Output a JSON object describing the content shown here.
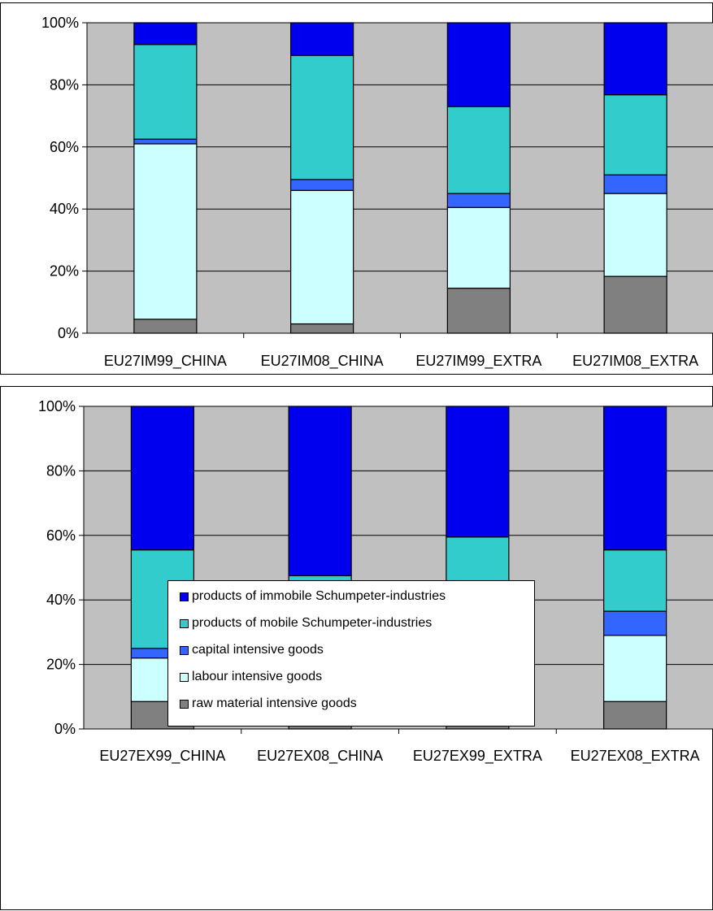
{
  "chart_data": [
    {
      "type": "bar",
      "stacked": true,
      "normalized": true,
      "categories": [
        "EU27IM99_CHINA",
        "EU27IM08_CHINA",
        "EU27IM99_EXTRA",
        "EU27IM08_EXTRA"
      ],
      "yticks": [
        "0%",
        "20%",
        "40%",
        "60%",
        "80%",
        "100%"
      ],
      "ylim": [
        0,
        100
      ],
      "grid": true,
      "series": [
        {
          "name": "raw material intensive goods",
          "color": "#808080",
          "values": [
            4.5,
            3,
            14.5,
            18.3
          ]
        },
        {
          "name": "labour intensive goods",
          "color": "#ccffff",
          "values": [
            56.5,
            43,
            26,
            26.7
          ]
        },
        {
          "name": "capital intensive goods",
          "color": "#3366ff",
          "values": [
            1.5,
            3.5,
            4.5,
            6
          ]
        },
        {
          "name": "products of mobile Schumpeter-industries",
          "color": "#33cccc",
          "values": [
            30.5,
            40,
            28,
            25.8
          ]
        },
        {
          "name": "products of immobile Schumpeter-industries",
          "color": "#0000ee",
          "values": [
            7,
            10.5,
            27,
            23.2
          ]
        }
      ]
    },
    {
      "type": "bar",
      "stacked": true,
      "normalized": true,
      "categories": [
        "EU27EX99_CHINA",
        "EU27EX08_CHINA",
        "EU27EX99_EXTRA",
        "EU27EX08_EXTRA"
      ],
      "yticks": [
        "0%",
        "20%",
        "40%",
        "60%",
        "80%",
        "100%"
      ],
      "ylim": [
        0,
        100
      ],
      "grid": true,
      "legend_position": "bottom",
      "series": [
        {
          "name": "raw material intensive goods",
          "color": "#808080",
          "values": [
            8.5,
            10.5,
            8,
            8.5
          ]
        },
        {
          "name": "labour intensive goods",
          "color": "#ccffff",
          "values": [
            13.5,
            12.5,
            23,
            20.5
          ]
        },
        {
          "name": "capital intensive goods",
          "color": "#3366ff",
          "values": [
            3,
            5,
            7,
            7.5
          ]
        },
        {
          "name": "products of mobile Schumpeter-industries",
          "color": "#33cccc",
          "values": [
            30.5,
            19.5,
            21.5,
            19
          ]
        },
        {
          "name": "products of immobile Schumpeter-industries",
          "color": "#0000ee",
          "values": [
            44.5,
            52.5,
            40.5,
            44.5
          ]
        }
      ]
    }
  ],
  "legend": {
    "items": [
      {
        "label": "products of immobile Schumpeter-industries",
        "color": "#0000ee"
      },
      {
        "label": "products of mobile Schumpeter-industries",
        "color": "#33cccc"
      },
      {
        "label": "capital intensive goods",
        "color": "#3366ff"
      },
      {
        "label": "labour intensive goods",
        "color": "#ccffff"
      },
      {
        "label": "raw material intensive goods",
        "color": "#808080"
      }
    ]
  },
  "colors": {
    "plot_background": "#c0c0c0"
  }
}
